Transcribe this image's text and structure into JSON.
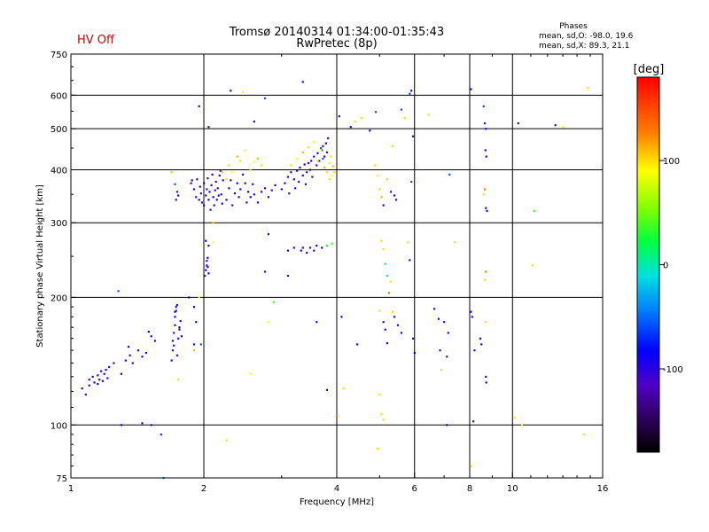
{
  "status": {
    "text": "HV Off",
    "color": "#cc0000"
  },
  "header": {
    "title_line1": "Tromsø 20140314 01:34:00-01:35:43",
    "title_line2": "RwPretec (8p)",
    "stats_title": "Phases",
    "stats_line1": "mean, sd,O: -98.0, 19.6",
    "stats_line2": "mean, sd,X:  89.3, 21.1"
  },
  "chart_data": {
    "type": "scatter",
    "xlabel": "Frequency [MHz]",
    "ylabel": "Stationary phase Virtual Height [km]",
    "xscale": "log",
    "yscale": "log",
    "xlim": [
      1,
      16
    ],
    "ylim": [
      75,
      750
    ],
    "x_ticks": [
      1,
      2,
      4,
      6,
      8,
      10,
      16
    ],
    "y_ticks": [
      75,
      100,
      200,
      300,
      400,
      500,
      600,
      750
    ],
    "x_gridlines": [
      2,
      4,
      6,
      8,
      10
    ],
    "y_gridlines": [
      100,
      200,
      300,
      400,
      500,
      600
    ],
    "colorbar": {
      "label": "[deg]",
      "range": [
        -180,
        180
      ],
      "ticks": [
        100,
        0,
        -100
      ]
    },
    "points": [
      [
        1.06,
        122,
        -100
      ],
      [
        1.08,
        118,
        -110
      ],
      [
        1.1,
        124,
        -95
      ],
      [
        1.1,
        128,
        -105
      ],
      [
        1.12,
        130,
        -100
      ],
      [
        1.13,
        126,
        -90
      ],
      [
        1.15,
        131,
        -110
      ],
      [
        1.15,
        125,
        -100
      ],
      [
        1.16,
        128,
        -95
      ],
      [
        1.17,
        134,
        -100
      ],
      [
        1.18,
        127,
        -105
      ],
      [
        1.19,
        132,
        -100
      ],
      [
        1.2,
        135,
        -90
      ],
      [
        1.21,
        129,
        -100
      ],
      [
        1.22,
        137,
        -110
      ],
      [
        1.25,
        140,
        -100
      ],
      [
        1.3,
        132,
        -95
      ],
      [
        1.33,
        142,
        -100
      ],
      [
        1.36,
        146,
        -105
      ],
      [
        1.38,
        140,
        -100
      ],
      [
        1.42,
        150,
        -95
      ],
      [
        1.45,
        145,
        -100
      ],
      [
        1.48,
        148,
        -110
      ],
      [
        1.52,
        162,
        -100
      ],
      [
        1.55,
        158,
        -95
      ],
      [
        1.35,
        153,
        -100
      ],
      [
        1.5,
        166,
        -90
      ],
      [
        1.28,
        207,
        -60
      ],
      [
        1.3,
        100,
        -100
      ],
      [
        1.45,
        101,
        -100
      ],
      [
        1.52,
        100,
        -120
      ],
      [
        1.6,
        95,
        -70
      ],
      [
        1.62,
        75,
        -40
      ],
      [
        1.69,
        142,
        -100
      ],
      [
        1.7,
        150,
        -95
      ],
      [
        1.7,
        158,
        -100
      ],
      [
        1.71,
        165,
        -110
      ],
      [
        1.72,
        172,
        -100
      ],
      [
        1.72,
        180,
        -95
      ],
      [
        1.73,
        186,
        -100
      ],
      [
        1.74,
        192,
        -105
      ],
      [
        1.75,
        160,
        -100
      ],
      [
        1.76,
        170,
        -90
      ],
      [
        1.77,
        176,
        -100
      ],
      [
        1.74,
        146,
        -110
      ],
      [
        1.71,
        154,
        -100
      ],
      [
        1.73,
        190,
        -100
      ],
      [
        1.72,
        185,
        -95
      ],
      [
        1.76,
        168,
        -100
      ],
      [
        1.78,
        162,
        -100
      ],
      [
        1.73,
        340,
        -100
      ],
      [
        1.75,
        348,
        -95
      ],
      [
        1.74,
        355,
        -110
      ],
      [
        1.72,
        370,
        -60
      ],
      [
        1.69,
        395,
        60
      ],
      [
        1.85,
        200,
        -100
      ],
      [
        1.9,
        190,
        -90
      ],
      [
        1.9,
        155,
        -100
      ],
      [
        1.92,
        175,
        -100
      ],
      [
        1.95,
        200,
        90
      ],
      [
        1.75,
        128,
        100
      ],
      [
        1.9,
        150,
        110
      ],
      [
        1.95,
        565,
        -100
      ],
      [
        2.05,
        505,
        -100
      ],
      [
        1.97,
        155,
        -60
      ],
      [
        1.87,
        372,
        -100
      ],
      [
        1.88,
        378,
        -95
      ],
      [
        1.9,
        360,
        -100
      ],
      [
        1.92,
        345,
        -110
      ],
      [
        1.93,
        380,
        -100
      ],
      [
        1.95,
        340,
        -95
      ],
      [
        1.96,
        365,
        -100
      ],
      [
        1.97,
        352,
        -105
      ],
      [
        1.98,
        335,
        -100
      ],
      [
        2.0,
        330,
        -90
      ],
      [
        2.0,
        372,
        -100
      ],
      [
        2.02,
        348,
        -100
      ],
      [
        2.03,
        360,
        -110
      ],
      [
        2.04,
        382,
        -100
      ],
      [
        2.05,
        340,
        -95
      ],
      [
        2.06,
        355,
        -100
      ],
      [
        2.07,
        322,
        -100
      ],
      [
        2.08,
        368,
        -105
      ],
      [
        2.09,
        390,
        -100
      ],
      [
        2.1,
        345,
        -95
      ],
      [
        2.11,
        330,
        -100
      ],
      [
        2.12,
        358,
        -100
      ],
      [
        2.13,
        375,
        -110
      ],
      [
        2.14,
        340,
        -100
      ],
      [
        2.15,
        362,
        -95
      ],
      [
        2.16,
        348,
        -100
      ],
      [
        2.17,
        388,
        -100
      ],
      [
        2.18,
        398,
        -105
      ],
      [
        2.19,
        350,
        -100
      ],
      [
        2.2,
        333,
        -95
      ],
      [
        2.21,
        378,
        -100
      ],
      [
        2.01,
        225,
        -100
      ],
      [
        2.02,
        232,
        -95
      ],
      [
        2.03,
        238,
        -100
      ],
      [
        2.03,
        244,
        -110
      ],
      [
        2.04,
        248,
        -100
      ],
      [
        2.05,
        228,
        -95
      ],
      [
        2.04,
        236,
        -100
      ],
      [
        2.05,
        265,
        -100
      ],
      [
        2.02,
        272,
        -90
      ],
      [
        2.1,
        270,
        90
      ],
      [
        2.1,
        300,
        110
      ],
      [
        2.25,
        340,
        -100
      ],
      [
        2.28,
        362,
        -95
      ],
      [
        2.3,
        378,
        -100
      ],
      [
        2.32,
        330,
        -110
      ],
      [
        2.35,
        352,
        -100
      ],
      [
        2.38,
        372,
        -95
      ],
      [
        2.4,
        345,
        -100
      ],
      [
        2.42,
        360,
        -100
      ],
      [
        2.45,
        390,
        -105
      ],
      [
        2.48,
        372,
        -100
      ],
      [
        2.5,
        335,
        -95
      ],
      [
        2.52,
        355,
        -100
      ],
      [
        2.55,
        345,
        -100
      ],
      [
        2.58,
        370,
        -110
      ],
      [
        2.6,
        350,
        -100
      ],
      [
        2.65,
        335,
        -95
      ],
      [
        2.7,
        355,
        -100
      ],
      [
        2.75,
        362,
        -100
      ],
      [
        2.8,
        345,
        -105
      ],
      [
        2.85,
        358,
        -100
      ],
      [
        2.9,
        368,
        -95
      ],
      [
        2.28,
        410,
        100
      ],
      [
        2.32,
        395,
        90
      ],
      [
        2.38,
        430,
        110
      ],
      [
        2.42,
        420,
        100
      ],
      [
        2.48,
        445,
        95
      ],
      [
        2.55,
        400,
        100
      ],
      [
        2.6,
        418,
        90
      ],
      [
        2.65,
        425,
        110
      ],
      [
        2.7,
        410,
        100
      ],
      [
        2.25,
        380,
        100
      ],
      [
        2.2,
        395,
        105
      ],
      [
        2.3,
        615,
        -100
      ],
      [
        2.45,
        610,
        90
      ],
      [
        2.6,
        520,
        -100
      ],
      [
        2.75,
        590,
        -60
      ],
      [
        3.35,
        645,
        -100
      ],
      [
        2.75,
        230,
        -100
      ],
      [
        2.8,
        282,
        -100
      ],
      [
        2.8,
        175,
        90
      ],
      [
        2.88,
        195,
        40
      ],
      [
        2.55,
        132,
        90
      ],
      [
        2.25,
        92,
        100
      ],
      [
        3.0,
        360,
        -100
      ],
      [
        3.05,
        372,
        -95
      ],
      [
        3.1,
        385,
        -100
      ],
      [
        3.12,
        352,
        -110
      ],
      [
        3.15,
        395,
        -100
      ],
      [
        3.2,
        380,
        -95
      ],
      [
        3.22,
        362,
        -100
      ],
      [
        3.25,
        398,
        -100
      ],
      [
        3.28,
        375,
        -105
      ],
      [
        3.3,
        405,
        -100
      ],
      [
        3.35,
        388,
        -95
      ],
      [
        3.38,
        412,
        -100
      ],
      [
        3.4,
        370,
        -100
      ],
      [
        3.42,
        395,
        -110
      ],
      [
        3.45,
        415,
        -100
      ],
      [
        3.48,
        400,
        -95
      ],
      [
        3.5,
        420,
        -100
      ],
      [
        3.52,
        385,
        -100
      ],
      [
        3.55,
        430,
        -105
      ],
      [
        3.6,
        410,
        -100
      ],
      [
        3.62,
        438,
        -95
      ],
      [
        3.65,
        420,
        -100
      ],
      [
        3.7,
        445,
        -100
      ],
      [
        3.72,
        455,
        -110
      ],
      [
        3.75,
        430,
        -100
      ],
      [
        3.78,
        462,
        -95
      ],
      [
        3.8,
        440,
        -100
      ],
      [
        3.82,
        475,
        -100
      ],
      [
        3.72,
        425,
        -60
      ],
      [
        3.68,
        450,
        -60
      ],
      [
        3.15,
        410,
        100
      ],
      [
        3.25,
        425,
        90
      ],
      [
        3.35,
        440,
        110
      ],
      [
        3.45,
        452,
        100
      ],
      [
        3.55,
        465,
        95
      ],
      [
        3.62,
        420,
        100
      ],
      [
        3.68,
        445,
        90
      ],
      [
        3.75,
        405,
        110
      ],
      [
        3.8,
        395,
        100
      ],
      [
        3.85,
        415,
        95
      ],
      [
        3.88,
        430,
        100
      ],
      [
        3.9,
        388,
        90
      ],
      [
        3.92,
        408,
        110
      ],
      [
        3.95,
        395,
        100
      ],
      [
        3.85,
        380,
        100
      ],
      [
        3.32,
        258,
        -100
      ],
      [
        3.35,
        262,
        -95
      ],
      [
        3.42,
        255,
        -100
      ],
      [
        3.48,
        262,
        -110
      ],
      [
        3.55,
        258,
        -100
      ],
      [
        3.6,
        265,
        -95
      ],
      [
        3.7,
        262,
        -100
      ],
      [
        3.8,
        265,
        20
      ],
      [
        3.9,
        268,
        30
      ],
      [
        3.1,
        258,
        -100
      ],
      [
        3.2,
        262,
        -100
      ],
      [
        3.1,
        225,
        -100
      ],
      [
        3.6,
        175,
        -100
      ],
      [
        3.8,
        121,
        -100
      ],
      [
        4.15,
        122,
        100
      ],
      [
        4.0,
        105,
        130
      ],
      [
        4.05,
        535,
        -100
      ],
      [
        4.3,
        505,
        -100
      ],
      [
        4.4,
        520,
        100
      ],
      [
        4.55,
        530,
        100
      ],
      [
        4.9,
        548,
        -60
      ],
      [
        4.75,
        495,
        -100
      ],
      [
        4.88,
        410,
        100
      ],
      [
        4.95,
        388,
        90
      ],
      [
        5.0,
        360,
        100
      ],
      [
        5.05,
        345,
        110
      ],
      [
        5.1,
        330,
        -100
      ],
      [
        5.2,
        380,
        100
      ],
      [
        5.35,
        455,
        100
      ],
      [
        5.3,
        355,
        -100
      ],
      [
        5.4,
        348,
        -100
      ],
      [
        5.45,
        340,
        -100
      ],
      [
        5.05,
        272,
        100
      ],
      [
        5.1,
        260,
        100
      ],
      [
        5.15,
        240,
        10
      ],
      [
        5.2,
        225,
        0
      ],
      [
        5.25,
        205,
        130
      ],
      [
        5.3,
        218,
        100
      ],
      [
        5.35,
        185,
        100
      ],
      [
        5.0,
        186,
        100
      ],
      [
        5.1,
        175,
        -100
      ],
      [
        5.15,
        168,
        -100
      ],
      [
        5.2,
        156,
        -100
      ],
      [
        5.4,
        180,
        -100
      ],
      [
        5.5,
        172,
        -100
      ],
      [
        5.6,
        165,
        -100
      ],
      [
        5.8,
        270,
        100
      ],
      [
        5.85,
        245,
        -100
      ],
      [
        5.0,
        118,
        100
      ],
      [
        5.05,
        106,
        100
      ],
      [
        5.1,
        103,
        100
      ],
      [
        4.95,
        88,
        100
      ],
      [
        4.45,
        155,
        -100
      ],
      [
        4.1,
        180,
        -100
      ],
      [
        5.6,
        555,
        -60
      ],
      [
        5.7,
        530,
        100
      ],
      [
        5.85,
        605,
        -60
      ],
      [
        5.9,
        615,
        -80
      ],
      [
        5.95,
        480,
        -100
      ],
      [
        5.9,
        375,
        -60
      ],
      [
        5.95,
        160,
        -100
      ],
      [
        6.0,
        148,
        -100
      ],
      [
        6.45,
        540,
        100
      ],
      [
        6.65,
        188,
        -100
      ],
      [
        6.8,
        178,
        -100
      ],
      [
        7.0,
        175,
        -100
      ],
      [
        7.15,
        165,
        -100
      ],
      [
        6.85,
        150,
        -100
      ],
      [
        7.1,
        145,
        -100
      ],
      [
        6.9,
        135,
        100
      ],
      [
        7.1,
        100,
        -100
      ],
      [
        7.2,
        390,
        -60
      ],
      [
        7.4,
        270,
        100
      ],
      [
        8.05,
        620,
        -100
      ],
      [
        8.1,
        180,
        -100
      ],
      [
        8.2,
        150,
        -100
      ],
      [
        8.15,
        102,
        -100
      ],
      [
        8.05,
        80,
        100
      ],
      [
        8.6,
        565,
        -60
      ],
      [
        8.65,
        515,
        -110
      ],
      [
        8.7,
        500,
        -100
      ],
      [
        8.68,
        445,
        -100
      ],
      [
        8.72,
        430,
        -100
      ],
      [
        8.65,
        360,
        130
      ],
      [
        8.6,
        350,
        100
      ],
      [
        8.7,
        325,
        -100
      ],
      [
        8.75,
        320,
        -100
      ],
      [
        8.7,
        230,
        130
      ],
      [
        8.65,
        220,
        100
      ],
      [
        8.68,
        175,
        100
      ],
      [
        8.7,
        130,
        -100
      ],
      [
        8.72,
        126,
        -100
      ],
      [
        8.05,
        185,
        -100
      ],
      [
        8.45,
        160,
        -100
      ],
      [
        8.5,
        155,
        -100
      ],
      [
        10.3,
        515,
        -100
      ],
      [
        10.1,
        104,
        100
      ],
      [
        10.5,
        100,
        100
      ],
      [
        11.2,
        320,
        40
      ],
      [
        11.1,
        238,
        100
      ],
      [
        12.5,
        510,
        -100
      ],
      [
        13.0,
        505,
        90
      ],
      [
        14.8,
        625,
        100
      ],
      [
        14.5,
        95,
        100
      ]
    ]
  }
}
